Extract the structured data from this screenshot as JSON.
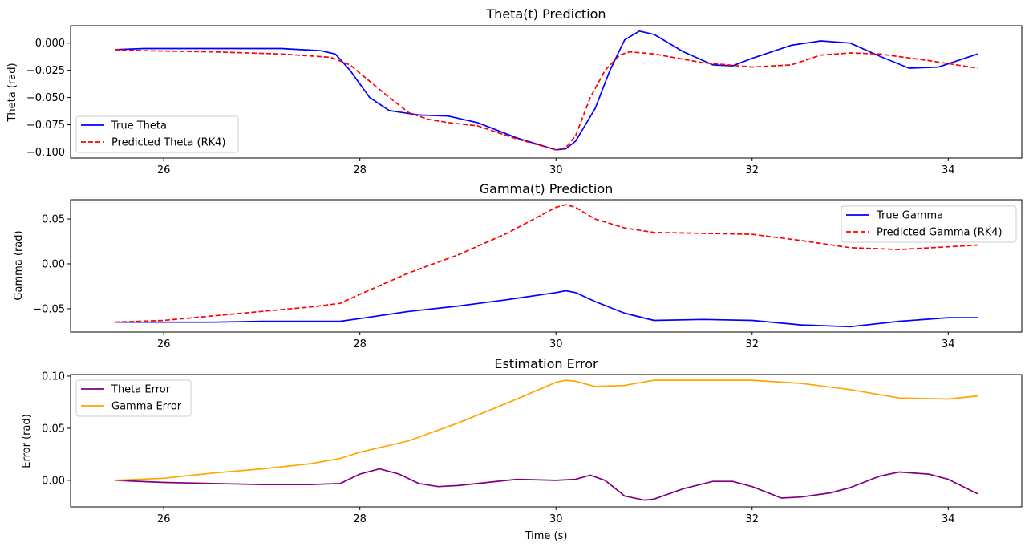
{
  "chart_data": [
    {
      "type": "line",
      "title": "Theta(t) Prediction",
      "xlabel": "",
      "ylabel": "Theta (rad)",
      "xlim": [
        25.05,
        34.75
      ],
      "ylim": [
        -0.1055,
        0.016
      ],
      "xticks": [
        26,
        28,
        30,
        32,
        34
      ],
      "yticks": [
        0.0,
        -0.025,
        -0.05,
        -0.075,
        -0.1
      ],
      "ytick_labels": [
        "0.000",
        "−0.025",
        "−0.050",
        "−0.075",
        "−0.100"
      ],
      "legend_position": "lower-left",
      "series": [
        {
          "name": "True Theta",
          "color": "#0000ff",
          "dash": "solid",
          "points": [
            [
              25.5,
              -0.006
            ],
            [
              25.8,
              -0.005
            ],
            [
              26.5,
              -0.005
            ],
            [
              27.2,
              -0.005
            ],
            [
              27.6,
              -0.007
            ],
            [
              27.75,
              -0.01
            ],
            [
              27.9,
              -0.025
            ],
            [
              28.1,
              -0.05
            ],
            [
              28.3,
              -0.062
            ],
            [
              28.6,
              -0.066
            ],
            [
              28.9,
              -0.067
            ],
            [
              29.2,
              -0.073
            ],
            [
              29.6,
              -0.087
            ],
            [
              30.0,
              -0.098
            ],
            [
              30.1,
              -0.097
            ],
            [
              30.2,
              -0.09
            ],
            [
              30.4,
              -0.06
            ],
            [
              30.55,
              -0.025
            ],
            [
              30.7,
              0.003
            ],
            [
              30.85,
              0.011
            ],
            [
              31.0,
              0.008
            ],
            [
              31.3,
              -0.008
            ],
            [
              31.6,
              -0.02
            ],
            [
              31.8,
              -0.021
            ],
            [
              32.0,
              -0.014
            ],
            [
              32.4,
              -0.002
            ],
            [
              32.7,
              0.002
            ],
            [
              33.0,
              0.0
            ],
            [
              33.3,
              -0.012
            ],
            [
              33.6,
              -0.023
            ],
            [
              33.9,
              -0.022
            ],
            [
              34.3,
              -0.01
            ]
          ]
        },
        {
          "name": "Predicted Theta (RK4)",
          "color": "#ff0000",
          "dash": "dashed",
          "points": [
            [
              25.5,
              -0.006
            ],
            [
              25.8,
              -0.007
            ],
            [
              26.5,
              -0.008
            ],
            [
              27.2,
              -0.01
            ],
            [
              27.7,
              -0.013
            ],
            [
              27.9,
              -0.02
            ],
            [
              28.1,
              -0.035
            ],
            [
              28.3,
              -0.05
            ],
            [
              28.5,
              -0.064
            ],
            [
              28.7,
              -0.07
            ],
            [
              28.9,
              -0.073
            ],
            [
              29.2,
              -0.076
            ],
            [
              29.6,
              -0.088
            ],
            [
              30.0,
              -0.098
            ],
            [
              30.1,
              -0.096
            ],
            [
              30.2,
              -0.085
            ],
            [
              30.35,
              -0.05
            ],
            [
              30.5,
              -0.025
            ],
            [
              30.65,
              -0.011
            ],
            [
              30.75,
              -0.008
            ],
            [
              31.0,
              -0.01
            ],
            [
              31.5,
              -0.018
            ],
            [
              32.0,
              -0.022
            ],
            [
              32.4,
              -0.02
            ],
            [
              32.7,
              -0.011
            ],
            [
              33.0,
              -0.009
            ],
            [
              33.3,
              -0.01
            ],
            [
              33.8,
              -0.016
            ],
            [
              34.3,
              -0.023
            ]
          ]
        }
      ]
    },
    {
      "type": "line",
      "title": "Gamma(t) Prediction",
      "xlabel": "",
      "ylabel": "Gamma (rad)",
      "xlim": [
        25.05,
        34.75
      ],
      "ylim": [
        -0.076,
        0.0715
      ],
      "xticks": [
        26,
        28,
        30,
        32,
        34
      ],
      "yticks": [
        0.05,
        0.0,
        -0.05
      ],
      "ytick_labels": [
        "0.05",
        "0.00",
        "−0.05"
      ],
      "legend_position": "upper-right",
      "series": [
        {
          "name": "True Gamma",
          "color": "#0000ff",
          "dash": "solid",
          "points": [
            [
              25.5,
              -0.065
            ],
            [
              26.0,
              -0.065
            ],
            [
              26.5,
              -0.065
            ],
            [
              27.0,
              -0.064
            ],
            [
              27.5,
              -0.064
            ],
            [
              27.8,
              -0.064
            ],
            [
              28.0,
              -0.061
            ],
            [
              28.5,
              -0.053
            ],
            [
              29.0,
              -0.047
            ],
            [
              29.5,
              -0.04
            ],
            [
              30.0,
              -0.032
            ],
            [
              30.1,
              -0.03
            ],
            [
              30.2,
              -0.032
            ],
            [
              30.4,
              -0.042
            ],
            [
              30.7,
              -0.055
            ],
            [
              31.0,
              -0.063
            ],
            [
              31.5,
              -0.062
            ],
            [
              32.0,
              -0.063
            ],
            [
              32.5,
              -0.068
            ],
            [
              33.0,
              -0.07
            ],
            [
              33.5,
              -0.064
            ],
            [
              34.0,
              -0.06
            ],
            [
              34.3,
              -0.06
            ]
          ]
        },
        {
          "name": "Predicted Gamma (RK4)",
          "color": "#ff0000",
          "dash": "dashed",
          "points": [
            [
              25.5,
              -0.065
            ],
            [
              26.0,
              -0.063
            ],
            [
              26.5,
              -0.058
            ],
            [
              27.0,
              -0.053
            ],
            [
              27.5,
              -0.048
            ],
            [
              27.8,
              -0.044
            ],
            [
              28.0,
              -0.034
            ],
            [
              28.5,
              -0.01
            ],
            [
              29.0,
              0.01
            ],
            [
              29.5,
              0.034
            ],
            [
              30.0,
              0.063
            ],
            [
              30.1,
              0.066
            ],
            [
              30.2,
              0.063
            ],
            [
              30.4,
              0.05
            ],
            [
              30.7,
              0.04
            ],
            [
              31.0,
              0.035
            ],
            [
              31.5,
              0.034
            ],
            [
              32.0,
              0.033
            ],
            [
              32.5,
              0.026
            ],
            [
              33.0,
              0.018
            ],
            [
              33.5,
              0.016
            ],
            [
              34.0,
              0.019
            ],
            [
              34.3,
              0.021
            ]
          ]
        }
      ]
    },
    {
      "type": "line",
      "title": "Estimation Error",
      "xlabel": "Time (s)",
      "ylabel": "Error (rad)",
      "xlim": [
        25.05,
        34.75
      ],
      "ylim": [
        -0.0255,
        0.1015
      ],
      "xticks": [
        26,
        28,
        30,
        32,
        34
      ],
      "yticks": [
        0.1,
        0.05,
        0.0
      ],
      "ytick_labels": [
        "0.10",
        "0.05",
        "0.00"
      ],
      "legend_position": "upper-left",
      "series": [
        {
          "name": "Theta Error",
          "color": "#800080",
          "dash": "solid",
          "points": [
            [
              25.5,
              0.0
            ],
            [
              26.0,
              -0.002
            ],
            [
              26.5,
              -0.003
            ],
            [
              27.0,
              -0.004
            ],
            [
              27.5,
              -0.004
            ],
            [
              27.8,
              -0.003
            ],
            [
              28.0,
              0.006
            ],
            [
              28.2,
              0.011
            ],
            [
              28.4,
              0.006
            ],
            [
              28.6,
              -0.003
            ],
            [
              28.8,
              -0.006
            ],
            [
              29.0,
              -0.005
            ],
            [
              29.3,
              -0.002
            ],
            [
              29.6,
              0.001
            ],
            [
              30.0,
              0.0
            ],
            [
              30.2,
              0.001
            ],
            [
              30.35,
              0.005
            ],
            [
              30.5,
              0.0
            ],
            [
              30.7,
              -0.015
            ],
            [
              30.9,
              -0.019
            ],
            [
              31.0,
              -0.018
            ],
            [
              31.3,
              -0.008
            ],
            [
              31.6,
              -0.001
            ],
            [
              31.8,
              -0.001
            ],
            [
              32.0,
              -0.006
            ],
            [
              32.3,
              -0.017
            ],
            [
              32.5,
              -0.016
            ],
            [
              32.8,
              -0.012
            ],
            [
              33.0,
              -0.007
            ],
            [
              33.3,
              0.004
            ],
            [
              33.5,
              0.008
            ],
            [
              33.8,
              0.006
            ],
            [
              34.0,
              0.001
            ],
            [
              34.3,
              -0.013
            ]
          ]
        },
        {
          "name": "Gamma Error",
          "color": "#ffa500",
          "dash": "solid",
          "points": [
            [
              25.5,
              0.0
            ],
            [
              26.0,
              0.002
            ],
            [
              26.5,
              0.007
            ],
            [
              27.0,
              0.011
            ],
            [
              27.5,
              0.016
            ],
            [
              27.8,
              0.021
            ],
            [
              28.0,
              0.027
            ],
            [
              28.5,
              0.038
            ],
            [
              29.0,
              0.055
            ],
            [
              29.5,
              0.074
            ],
            [
              30.0,
              0.094
            ],
            [
              30.1,
              0.096
            ],
            [
              30.2,
              0.095
            ],
            [
              30.4,
              0.09
            ],
            [
              30.7,
              0.091
            ],
            [
              31.0,
              0.096
            ],
            [
              31.5,
              0.096
            ],
            [
              32.0,
              0.096
            ],
            [
              32.5,
              0.093
            ],
            [
              33.0,
              0.087
            ],
            [
              33.5,
              0.079
            ],
            [
              34.0,
              0.078
            ],
            [
              34.3,
              0.081
            ]
          ]
        }
      ]
    }
  ]
}
